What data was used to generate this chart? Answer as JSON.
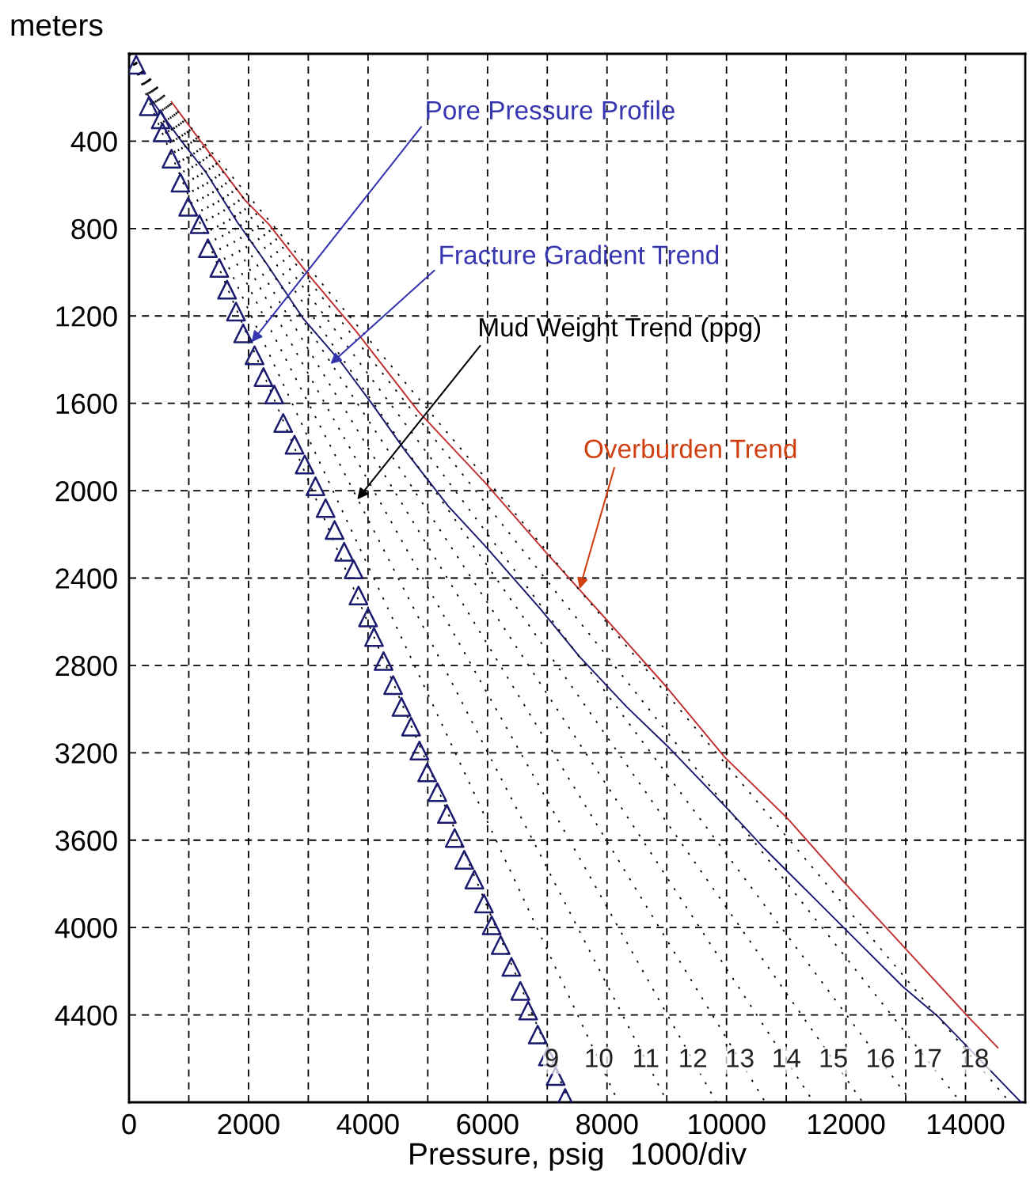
{
  "chart_data": {
    "type": "line",
    "xlabel": "Pressure, psig   1000/div",
    "ylabel": "meters",
    "xlim": [
      0,
      15000
    ],
    "ylim": [
      4800,
      0
    ],
    "xticks": [
      0,
      {
        "value": 1000,
        "label": null
      },
      2000,
      {
        "value": 3000,
        "label": null
      },
      4000,
      {
        "value": 5000,
        "label": null
      },
      6000,
      {
        "value": 7000,
        "label": null
      },
      8000,
      {
        "value": 9000,
        "label": null
      },
      10000,
      {
        "value": 11000,
        "label": null
      },
      12000,
      {
        "value": 13000,
        "label": null
      },
      14000,
      {
        "value": 15000,
        "label": null
      }
    ],
    "yticks": [
      {
        "value": 0,
        "label": null
      },
      400,
      800,
      1200,
      1600,
      2000,
      2400,
      2800,
      3200,
      3600,
      4000,
      4400,
      {
        "value": 4800,
        "label": null
      }
    ],
    "grid": true,
    "series": [
      {
        "type": "scatter",
        "marker": "triangle",
        "color": "#1a1a6e",
        "x": [
          120,
          330,
          530,
          560,
          710,
          860,
          990,
          1180,
          1320,
          1510,
          1640,
          1790,
          1910,
          2100,
          2250,
          2430,
          2580,
          2770,
          2940,
          3120,
          3290,
          3440,
          3600,
          3760,
          3840,
          4000,
          4100,
          4260,
          4420,
          4560,
          4720,
          4860,
          4990,
          5160,
          5320,
          5450,
          5610,
          5780,
          5940,
          6070,
          6220,
          6400,
          6550,
          6680,
          6840,
          7010,
          7140,
          7300
        ],
        "values": [
          50,
          240,
          300,
          360,
          480,
          590,
          700,
          780,
          890,
          980,
          1080,
          1180,
          1280,
          1380,
          1480,
          1560,
          1690,
          1790,
          1880,
          1980,
          2080,
          2180,
          2280,
          2360,
          2480,
          2580,
          2670,
          2780,
          2890,
          2990,
          3080,
          3190,
          3290,
          3380,
          3480,
          3590,
          3690,
          3780,
          3890,
          3990,
          4080,
          4180,
          4290,
          4380,
          4490,
          4590,
          4680,
          4780
        ]
      },
      {
        "line_style": "solid",
        "color": "#1a1a6e",
        "x": [
          320,
          850,
          1280,
          1810,
          2300,
          2910,
          3570,
          4060,
          4630,
          5340,
          5950,
          6880,
          7540,
          8330,
          9050,
          10030,
          10640,
          11960,
          12950,
          13550,
          14930
        ],
        "values": [
          190,
          390,
          540,
          770,
          960,
          1210,
          1420,
          1600,
          1820,
          2070,
          2250,
          2540,
          2760,
          2990,
          3180,
          3460,
          3640,
          4000,
          4270,
          4410,
          4800
        ]
      },
      {
        "line_style": "solid",
        "color": "#c03030",
        "x": [
          710,
          1280,
          1940,
          2340,
          3000,
          3800,
          4850,
          5950,
          6970,
          7990,
          9000,
          9970,
          11020,
          11960,
          12670,
          14050,
          14540
        ],
        "values": [
          220,
          430,
          670,
          780,
          1010,
          1270,
          1640,
          1960,
          2280,
          2590,
          2900,
          3220,
          3500,
          3790,
          4000,
          4410,
          4550
        ]
      },
      {
        "type": "line",
        "line_style": "dotted",
        "name": "9",
        "color": "#000000",
        "x": [
          0,
          7370
        ],
        "values": [
          0,
          4800
        ]
      },
      {
        "type": "line",
        "line_style": "dotted",
        "name": "10",
        "color": "#000000",
        "x": [
          0,
          8190
        ],
        "values": [
          0,
          4800
        ]
      },
      {
        "type": "line",
        "line_style": "dotted",
        "name": "11",
        "color": "#000000",
        "x": [
          0,
          9010
        ],
        "values": [
          0,
          4800
        ]
      },
      {
        "type": "line",
        "line_style": "dotted",
        "name": "12",
        "color": "#000000",
        "x": [
          0,
          9830
        ],
        "values": [
          0,
          4800
        ]
      },
      {
        "type": "line",
        "line_style": "dotted",
        "name": "13",
        "color": "#000000",
        "x": [
          0,
          10650
        ],
        "values": [
          0,
          4800
        ]
      },
      {
        "type": "line",
        "line_style": "dotted",
        "name": "14",
        "color": "#000000",
        "x": [
          0,
          11460
        ],
        "values": [
          0,
          4800
        ]
      },
      {
        "type": "line",
        "line_style": "dotted",
        "name": "15",
        "color": "#000000",
        "x": [
          0,
          12280
        ],
        "values": [
          0,
          4800
        ]
      },
      {
        "type": "line",
        "line_style": "dotted",
        "name": "16",
        "color": "#000000",
        "x": [
          0,
          13100
        ],
        "values": [
          0,
          4800
        ]
      },
      {
        "type": "line",
        "line_style": "dotted",
        "name": "17",
        "color": "#000000",
        "x": [
          0,
          13920
        ],
        "values": [
          0,
          4800
        ]
      },
      {
        "type": "line",
        "line_style": "dotted",
        "name": "18",
        "color": "#000000",
        "x": [
          0,
          14740
        ],
        "values": [
          0,
          4800
        ]
      }
    ],
    "annotations": [
      {
        "text": "Pore Pressure Profile",
        "x": 2050,
        "y": 1320
      },
      {
        "text": "Fracture Gradient Trend",
        "x": 3370,
        "y": 1420
      },
      {
        "text": "Mud Weight Trend (ppg)",
        "x": 3820,
        "y": 2040
      },
      {
        "text": "Overburden Trend",
        "x": 7540,
        "y": 2450
      }
    ]
  }
}
